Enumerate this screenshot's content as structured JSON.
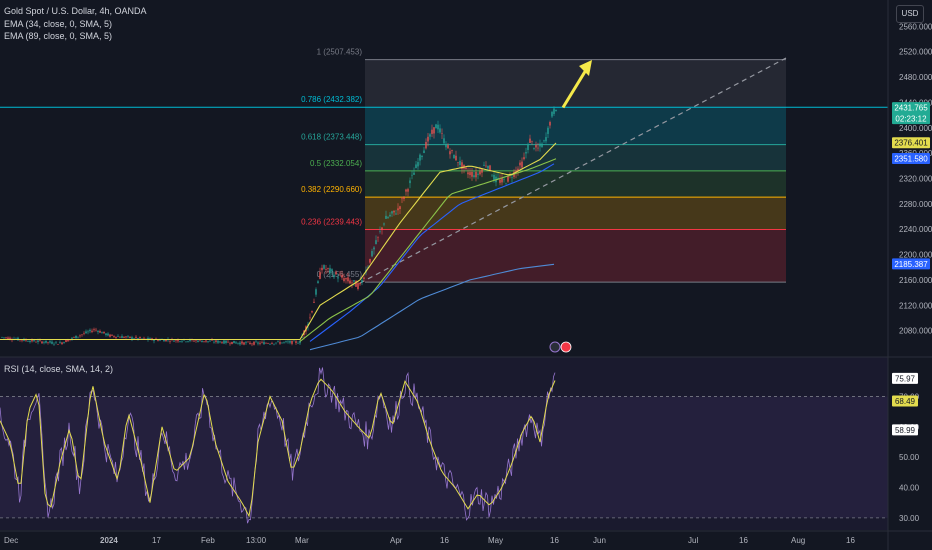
{
  "header": {
    "title": "Gold Spot / U.S. Dollar, 4h, OANDA",
    "ema1": "EMA (34, close, 0, SMA, 5)",
    "ema2": "EMA (89, close, 0, SMA, 5)",
    "currency": "USD",
    "rsi_label": "RSI (14, close, SMA, 14, 2)"
  },
  "colors": {
    "background": "#131722",
    "candle_up": "#9c8ec9",
    "ema_fast": "#e3dc4e",
    "ema_slow": "#8bc34a",
    "ema_long": "#2962ff",
    "ema_200": "#4f8bd6",
    "rsi_line": "#9575cd",
    "rsi_signal": "#e3dc4e",
    "arrow": "#f5e94a"
  },
  "chart_data": {
    "type": "line",
    "price_axis": {
      "ticks": [
        "2560.000",
        "2520.000",
        "2480.000",
        "2440.000",
        "2400.000",
        "2360.000",
        "2320.000",
        "2280.000",
        "2240.000",
        "2200.000",
        "2160.000",
        "2120.000",
        "2080.000"
      ],
      "range": [
        2040,
        2570
      ]
    },
    "rsi_axis": {
      "ticks": [
        "70.00",
        "60.00",
        "50.00",
        "40.00",
        "30.00"
      ],
      "range": [
        26,
        83
      ]
    },
    "time_axis": [
      "Dec",
      "2024",
      "17",
      "Feb",
      "13:00",
      "Mar",
      "Apr",
      "16",
      "May",
      "16",
      "Jun",
      "Jul",
      "16",
      "Aug",
      "16"
    ],
    "fib_levels": [
      {
        "label": "1 (2507.453)",
        "price": 2507.453,
        "color": "#787b86"
      },
      {
        "label": "0.786 (2432.382)",
        "price": 2432.382,
        "color": "#00bcd4"
      },
      {
        "label": "0.618 (2373.448)",
        "price": 2373.448,
        "color": "#26a69a"
      },
      {
        "label": "0.5 (2332.054)",
        "price": 2332.054,
        "color": "#4caf50"
      },
      {
        "label": "0.382 (2290.660)",
        "price": 2290.66,
        "color": "#ffb300"
      },
      {
        "label": "0.236 (2239.443)",
        "price": 2239.443,
        "color": "#f23645"
      },
      {
        "label": "0 (2156.455)",
        "price": 2156.455,
        "color": "#787b86"
      }
    ],
    "price_badges": [
      {
        "text": "2431.765",
        "sub": "02:23:12",
        "price": 2431.765,
        "bg": "#22ab94",
        "fg": "#ffffff"
      },
      {
        "text": "2376.401",
        "price": 2376.401,
        "bg": "#e3dc4e",
        "fg": "#131722"
      },
      {
        "text": "2351.580",
        "price": 2351.58,
        "bg": "#2962ff",
        "fg": "#ffffff"
      },
      {
        "text": "2185.387",
        "price": 2185.387,
        "bg": "#2962ff",
        "fg": "#ffffff"
      }
    ],
    "rsi_badges": [
      {
        "text": "75.97",
        "value": 75.97,
        "bg": "#ffffff",
        "fg": "#131722"
      },
      {
        "text": "68.49",
        "value": 68.49,
        "bg": "#e3dc4e",
        "fg": "#131722"
      },
      {
        "text": "58.99",
        "value": 58.99,
        "bg": "#ffffff",
        "fg": "#131722"
      }
    ],
    "rsi_bands": [
      70,
      30
    ],
    "price_keypoints": [
      [
        0,
        2070
      ],
      [
        25,
        2065
      ],
      [
        60,
        2060
      ],
      [
        95,
        2082
      ],
      [
        110,
        2072
      ],
      [
        150,
        2066
      ],
      [
        200,
        2064
      ],
      [
        250,
        2060
      ],
      [
        300,
        2062
      ],
      [
        310,
        2100
      ],
      [
        322,
        2180
      ],
      [
        340,
        2165
      ],
      [
        360,
        2150
      ],
      [
        372,
        2200
      ],
      [
        385,
        2255
      ],
      [
        398,
        2270
      ],
      [
        408,
        2305
      ],
      [
        418,
        2345
      ],
      [
        428,
        2380
      ],
      [
        437,
        2405
      ],
      [
        447,
        2370
      ],
      [
        457,
        2350
      ],
      [
        467,
        2330
      ],
      [
        477,
        2325
      ],
      [
        487,
        2345
      ],
      [
        495,
        2318
      ],
      [
        505,
        2315
      ],
      [
        515,
        2330
      ],
      [
        523,
        2345
      ],
      [
        530,
        2380
      ],
      [
        537,
        2365
      ],
      [
        545,
        2378
      ],
      [
        552,
        2420
      ],
      [
        556,
        2432
      ]
    ],
    "ema_fast_keypoints": [
      [
        0,
        2066
      ],
      [
        300,
        2066
      ],
      [
        320,
        2120
      ],
      [
        360,
        2160
      ],
      [
        400,
        2250
      ],
      [
        440,
        2330
      ],
      [
        470,
        2340
      ],
      [
        510,
        2325
      ],
      [
        540,
        2350
      ],
      [
        556,
        2376
      ]
    ],
    "ema_slow_keypoints": [
      [
        300,
        2063
      ],
      [
        330,
        2100
      ],
      [
        370,
        2135
      ],
      [
        410,
        2215
      ],
      [
        450,
        2295
      ],
      [
        490,
        2315
      ],
      [
        530,
        2335
      ],
      [
        556,
        2351
      ]
    ],
    "ema_long_keypoints": [
      [
        310,
        2063
      ],
      [
        350,
        2110
      ],
      [
        380,
        2150
      ],
      [
        420,
        2230
      ],
      [
        460,
        2280
      ],
      [
        500,
        2305
      ],
      [
        540,
        2330
      ],
      [
        556,
        2345
      ]
    ],
    "ema_200_keypoints": [
      [
        310,
        2050
      ],
      [
        360,
        2070
      ],
      [
        420,
        2130
      ],
      [
        470,
        2160
      ],
      [
        520,
        2178
      ],
      [
        556,
        2185
      ]
    ],
    "trendline": {
      "start": [
        360,
        2155
      ],
      "end": [
        786,
        2510
      ]
    },
    "target_arrow": {
      "start": [
        563,
        2432
      ],
      "end": [
        592,
        2507
      ]
    },
    "rsi_keypoints": [
      [
        0,
        62
      ],
      [
        10,
        55
      ],
      [
        20,
        38
      ],
      [
        28,
        65
      ],
      [
        38,
        72
      ],
      [
        45,
        38
      ],
      [
        50,
        32
      ],
      [
        60,
        48
      ],
      [
        70,
        60
      ],
      [
        80,
        40
      ],
      [
        92,
        75
      ],
      [
        104,
        55
      ],
      [
        118,
        42
      ],
      [
        128,
        65
      ],
      [
        140,
        50
      ],
      [
        150,
        35
      ],
      [
        162,
        60
      ],
      [
        175,
        45
      ],
      [
        190,
        50
      ],
      [
        205,
        72
      ],
      [
        215,
        55
      ],
      [
        228,
        42
      ],
      [
        242,
        35
      ],
      [
        250,
        30
      ],
      [
        258,
        55
      ],
      [
        270,
        70
      ],
      [
        282,
        62
      ],
      [
        292,
        45
      ],
      [
        300,
        52
      ],
      [
        310,
        68
      ],
      [
        320,
        76
      ],
      [
        332,
        72
      ],
      [
        345,
        65
      ],
      [
        358,
        60
      ],
      [
        370,
        56
      ],
      [
        380,
        72
      ],
      [
        392,
        60
      ],
      [
        405,
        75
      ],
      [
        418,
        68
      ],
      [
        430,
        55
      ],
      [
        442,
        45
      ],
      [
        455,
        40
      ],
      [
        468,
        33
      ],
      [
        478,
        38
      ],
      [
        490,
        34
      ],
      [
        502,
        40
      ],
      [
        512,
        48
      ],
      [
        522,
        58
      ],
      [
        532,
        64
      ],
      [
        540,
        55
      ],
      [
        548,
        70
      ],
      [
        556,
        76
      ]
    ]
  }
}
